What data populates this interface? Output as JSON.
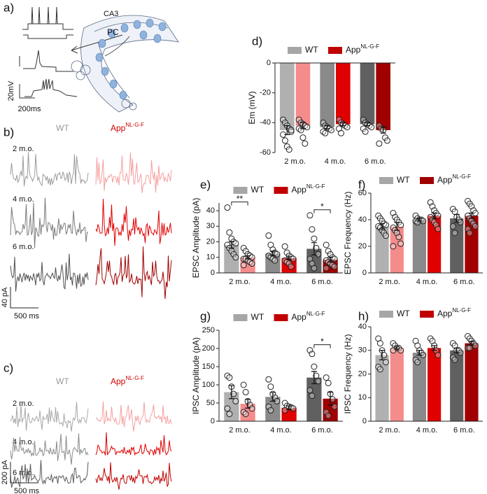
{
  "figure_a": {
    "label": "a)",
    "region_label": "CA3",
    "cell_label": "PC",
    "scale_y": "20mV",
    "scale_x": "200ms"
  },
  "figure_b": {
    "label": "b)",
    "wt": "WT",
    "app": "App",
    "app_sup": "NL-G-F",
    "ages": [
      "2 m.o.",
      "4 m.o.",
      "6 m.o."
    ],
    "wt_colors": [
      "#9c9c9c",
      "#7a7a7a",
      "#505050"
    ],
    "app_colors": [
      "#f5a0a0",
      "#e00000",
      "#a00000"
    ],
    "scale_y": "40 pA",
    "scale_x": "500 ms"
  },
  "figure_c": {
    "label": "c)",
    "wt": "WT",
    "app": "App",
    "app_sup": "NL-G-F",
    "ages": [
      "2 m.o.",
      "4 m.o.",
      "6 m.o."
    ],
    "wt_colors": [
      "#a8a8a8",
      "#8a8a8a",
      "#5a5a5a"
    ],
    "app_colors": [
      "#f5a0a0",
      "#e00000",
      "#c00000"
    ],
    "scale_y": "200 pA",
    "scale_x": "500 ms"
  },
  "chart_data": [
    {
      "type": "bar",
      "label": "d)",
      "ylabel": "Em (mV)",
      "categories": [
        "2 m.o.",
        "4 m.o.",
        "6 m.o."
      ],
      "ylim": [
        -60,
        0
      ],
      "yticks": [
        0,
        -20,
        -40,
        -60
      ],
      "legend": "top",
      "series": [
        {
          "name": "WT",
          "color": "#a6a6a6",
          "colors": [
            "#b0b0b0",
            "#8a8a8a",
            "#606060"
          ],
          "values": [
            -45,
            -43,
            -41
          ],
          "errors": [
            3,
            1,
            1
          ],
          "points": [
            [
              -38,
              -40,
              -42,
              -44,
              -46,
              -48,
              -52,
              -56,
              -58,
              -45
            ],
            [
              -40,
              -42,
              -43,
              -44,
              -45,
              -46,
              -47
            ],
            [
              -38,
              -40,
              -41,
              -42,
              -43,
              -44,
              -46
            ]
          ]
        },
        {
          "name": "App",
          "name_superscript": "NL-G-F",
          "color": "#c00000",
          "colors": [
            "#f58c8c",
            "#e00000",
            "#a00000"
          ],
          "values": [
            -42,
            -41,
            -45
          ],
          "errors": [
            2,
            1,
            2
          ],
          "points": [
            [
              -38,
              -40,
              -41,
              -42,
              -43,
              -44,
              -45,
              -50,
              -54
            ],
            [
              -38,
              -40,
              -41,
              -42,
              -43,
              -44,
              -47
            ],
            [
              -42,
              -44,
              -45,
              -50,
              -52,
              -54
            ]
          ]
        }
      ]
    },
    {
      "type": "bar",
      "label": "e)",
      "ylabel": "EPSC Amplitude (pA)",
      "categories": [
        "2 m.o.",
        "4 m.o.",
        "6 m.o."
      ],
      "ylim": [
        0,
        45
      ],
      "yticks": [
        0,
        10,
        20,
        30,
        40
      ],
      "legend": "top",
      "annotations": [
        {
          "text": "**",
          "category": "2 m.o."
        },
        {
          "text": "*",
          "category": "6 m.o."
        }
      ],
      "series": [
        {
          "name": "WT",
          "color": "#a6a6a6",
          "colors": [
            "#b0b0b0",
            "#8a8a8a",
            "#606060"
          ],
          "values": [
            18,
            12.5,
            15.5
          ],
          "errors": [
            2,
            1.5,
            4
          ],
          "points": [
            [
              42,
              26,
              22,
              20,
              19,
              18,
              16,
              14,
              12,
              10
            ],
            [
              24,
              18,
              15,
              13,
              12,
              11,
              10,
              9,
              8
            ],
            [
              37,
              28,
              22,
              16,
              12,
              9,
              6,
              3
            ]
          ]
        },
        {
          "name": "App",
          "name_superscript": "NL-G-F",
          "color": "#c00000",
          "colors": [
            "#f58c8c",
            "#e00000",
            "#a00000"
          ],
          "values": [
            10,
            9.5,
            8.5
          ],
          "errors": [
            1,
            1,
            1.5
          ],
          "points": [
            [
              16,
              14,
              12,
              11,
              10,
              9,
              9,
              8,
              7,
              6,
              5
            ],
            [
              17,
              13,
              11,
              10,
              9,
              8,
              7,
              6,
              4
            ],
            [
              18,
              14,
              12,
              10,
              9,
              8,
              7,
              6,
              5,
              4,
              3
            ]
          ]
        }
      ]
    },
    {
      "type": "bar",
      "label": "f)",
      "ylabel": "EPSC Frequency (Hz)",
      "categories": [
        "2 m.o.",
        "4 m.o.",
        "6 m.o."
      ],
      "ylim": [
        0,
        60
      ],
      "yticks": [
        0,
        20,
        40,
        60
      ],
      "legend": "top",
      "series": [
        {
          "name": "WT",
          "color": "#a6a6a6",
          "colors": [
            "#b0b0b0",
            "#8a8a8a",
            "#606060"
          ],
          "values": [
            35,
            40,
            41
          ],
          "errors": [
            2,
            1,
            3
          ],
          "points": [
            [
              43,
              41,
              39,
              37,
              36,
              35,
              34,
              32,
              30,
              28
            ],
            [
              43,
              41,
              40,
              40,
              39,
              39,
              38
            ],
            [
              48,
              46,
              42,
              40,
              38,
              35,
              30
            ]
          ]
        },
        {
          "name": "App",
          "name_superscript": "NL-G-F",
          "color": "#a00000",
          "colors": [
            "#f58c8c",
            "#e00000",
            "#a00000"
          ],
          "values": [
            35,
            43,
            43
          ],
          "errors": [
            3,
            2,
            2
          ],
          "points": [
            [
              45,
              42,
              40,
              38,
              36,
              34,
              32,
              30,
              27,
              22,
              20
            ],
            [
              53,
              50,
              47,
              45,
              43,
              42,
              40,
              38,
              36,
              33
            ],
            [
              54,
              52,
              50,
              47,
              45,
              43,
              41,
              39,
              37,
              35,
              33,
              30
            ]
          ]
        }
      ]
    },
    {
      "type": "bar",
      "label": "g)",
      "ylabel": "IPSC Amplitude (pA)",
      "categories": [
        "2 m.o.",
        "4 m.o.",
        "6 m.o."
      ],
      "ylim": [
        0,
        250
      ],
      "yticks": [
        0,
        50,
        100,
        150,
        200,
        250
      ],
      "legend": "top",
      "annotations": [
        {
          "text": "*",
          "category": "6 m.o."
        }
      ],
      "series": [
        {
          "name": "WT",
          "color": "#a6a6a6",
          "colors": [
            "#b0b0b0",
            "#8a8a8a",
            "#606060"
          ],
          "values": [
            80,
            67,
            120
          ],
          "errors": [
            18,
            12,
            17
          ],
          "points": [
            [
              125,
              120,
              95,
              75,
              55,
              35,
              20
            ],
            [
              115,
              95,
              75,
              65,
              55,
              40,
              30
            ],
            [
              195,
              185,
              150,
              125,
              110,
              85,
              70
            ]
          ]
        },
        {
          "name": "App",
          "name_superscript": "NL-G-F",
          "color": "#c00000",
          "colors": [
            "#f58c8c",
            "#e00000",
            "#a00000"
          ],
          "values": [
            48,
            37,
            62
          ],
          "errors": [
            12,
            5,
            18
          ],
          "points": [
            [
              100,
              80,
              55,
              45,
              35,
              25,
              20
            ],
            [
              50,
              42,
              40,
              38,
              35,
              30
            ],
            [
              120,
              105,
              75,
              60,
              40,
              25,
              15
            ]
          ]
        }
      ]
    },
    {
      "type": "bar",
      "label": "h)",
      "ylabel": "IPSC Frequency (Hz)",
      "categories": [
        "2 m.o.",
        "4 m.o.",
        "6 m.o."
      ],
      "ylim": [
        0,
        40
      ],
      "yticks": [
        0,
        10,
        20,
        30,
        40
      ],
      "legend": "top",
      "series": [
        {
          "name": "WT",
          "color": "#a6a6a6",
          "colors": [
            "#b0b0b0",
            "#8a8a8a",
            "#606060"
          ],
          "values": [
            28,
            29,
            30
          ],
          "errors": [
            2,
            1,
            1
          ],
          "points": [
            [
              35,
              33,
              30,
              28,
              25,
              23,
              22
            ],
            [
              34,
              32,
              30,
              29,
              28,
              26,
              25
            ],
            [
              33,
              32,
              30,
              30,
              29,
              27,
              26
            ]
          ]
        },
        {
          "name": "App",
          "name_superscript": "NL-G-F",
          "color": "#c00000",
          "colors": [
            "#f58c8c",
            "#e00000",
            "#a00000"
          ],
          "values": [
            31,
            31,
            33
          ],
          "errors": [
            0.5,
            1,
            0.7
          ],
          "points": [
            [
              33,
              32,
              31,
              31,
              30,
              30
            ],
            [
              35,
              34,
              32,
              30,
              28
            ],
            [
              36,
              35,
              34,
              33,
              32,
              31,
              31
            ]
          ]
        }
      ]
    }
  ]
}
